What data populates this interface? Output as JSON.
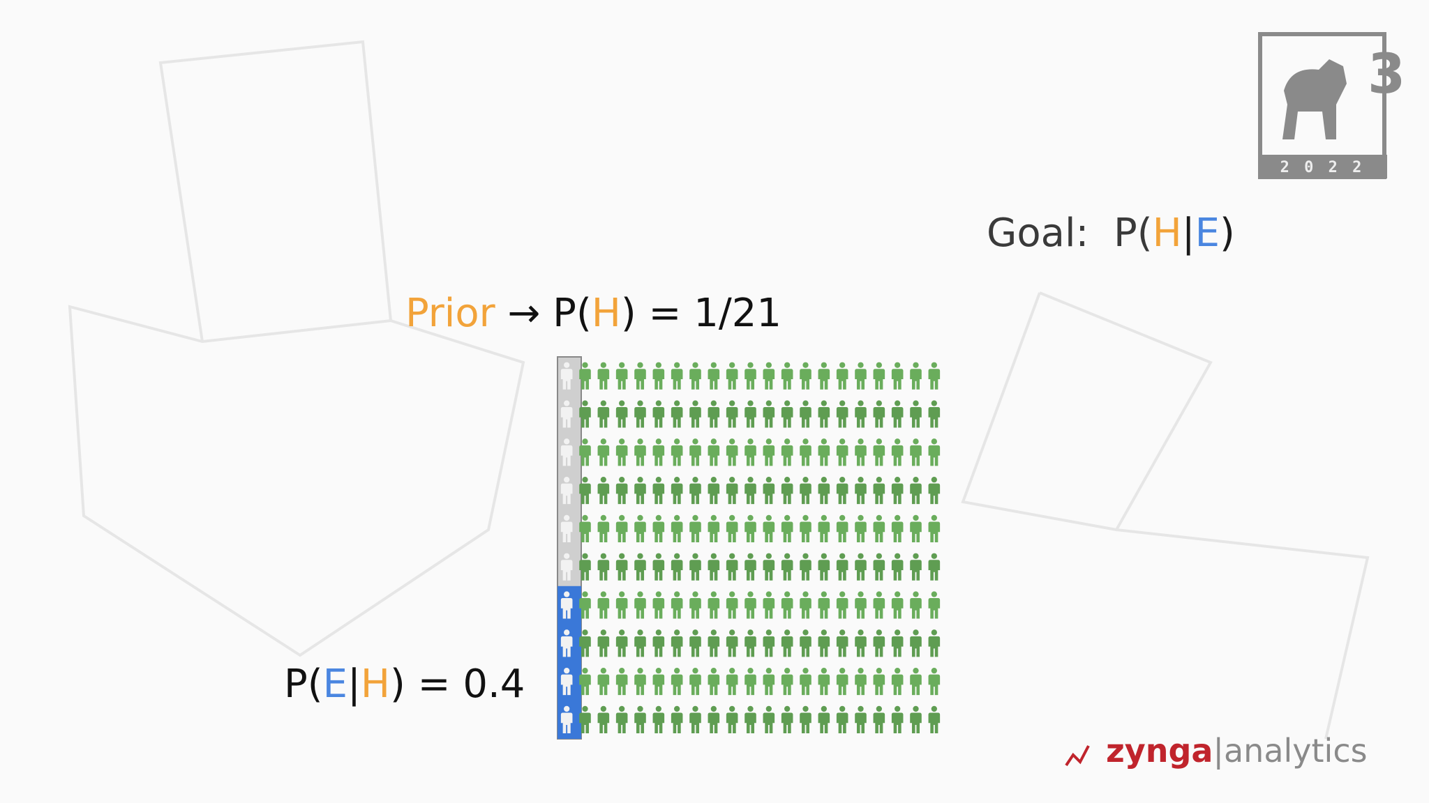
{
  "logo": {
    "digit": "3",
    "year": "2 0 2 2"
  },
  "goal": [
    {
      "text": "Goal:  P(",
      "color": "#3a3a3a"
    },
    {
      "text": "H",
      "color": "#f2a33a"
    },
    {
      "text": "|",
      "color": "#1a1a1a"
    },
    {
      "text": "E",
      "color": "#4a86e0"
    },
    {
      "text": ")",
      "color": "#1a1a1a"
    }
  ],
  "prior": [
    {
      "text": "Prior",
      "color": "#f2a33a"
    },
    {
      "text": " → P(",
      "color": "#111111"
    },
    {
      "text": "H",
      "color": "#f2a33a"
    },
    {
      "text": ") = 1/21",
      "color": "#111111"
    }
  ],
  "likelihood": [
    {
      "text": "P(",
      "color": "#111111"
    },
    {
      "text": "E",
      "color": "#4a86e0"
    },
    {
      "text": "|",
      "color": "#111111"
    },
    {
      "text": "H",
      "color": "#f2a33a"
    },
    {
      "text": ") = 0.4",
      "color": "#111111"
    }
  ],
  "population": {
    "columns": 21,
    "rows": 10,
    "evidence_rows": 4
  },
  "footer": {
    "brand": "zynga",
    "product": "|analytics"
  }
}
